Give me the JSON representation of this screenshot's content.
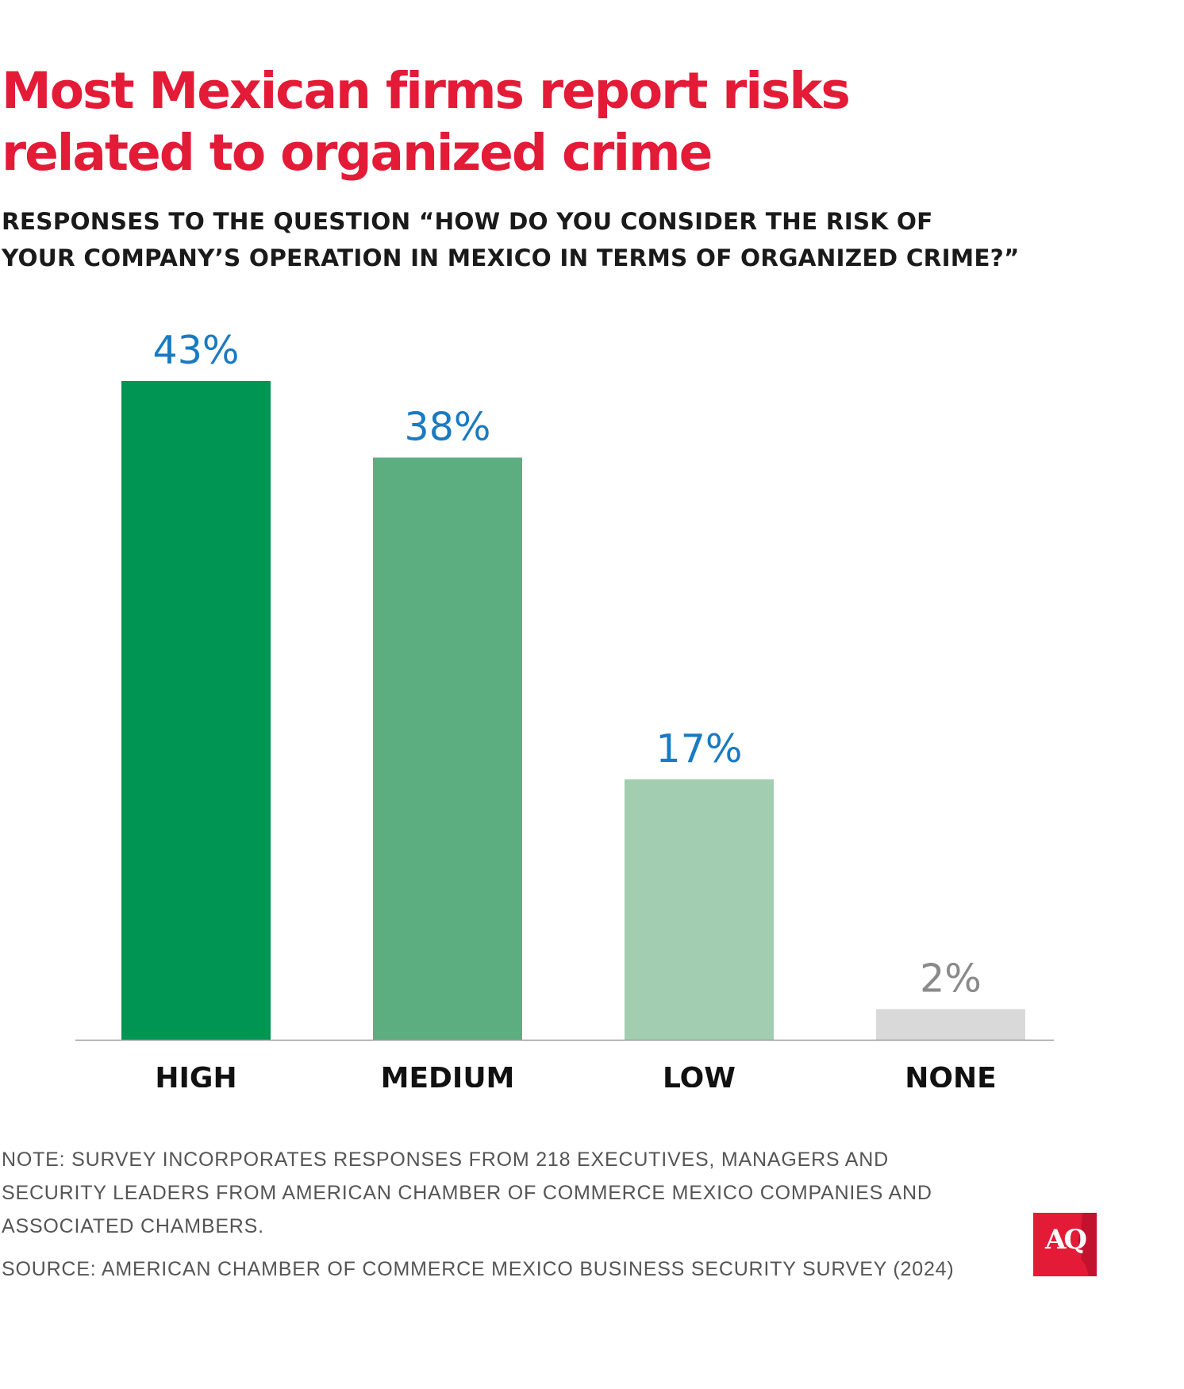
{
  "title_lines": [
    "Most Mexican firms report risks",
    "related to organized crime"
  ],
  "subtitle_lines": [
    "RESPONSES TO THE QUESTION “HOW DO YOU CONSIDER THE RISK OF",
    "YOUR COMPANY’S OPERATION IN MEXICO IN TERMS OF ORGANIZED CRIME?”"
  ],
  "chart_data": {
    "type": "bar",
    "title": "Most Mexican firms report risks related to organized crime",
    "categories": [
      "HIGH",
      "MEDIUM",
      "LOW",
      "NONE"
    ],
    "values": [
      43,
      38,
      17,
      2
    ],
    "value_labels": [
      "43%",
      "38%",
      "17%",
      "2%"
    ],
    "unit": "%",
    "ylim": [
      0,
      43
    ],
    "grid": false,
    "bar_colors": [
      "#009552",
      "#5cae80",
      "#a2cdb1",
      "#d9d9d9"
    ],
    "label_colors": [
      "#1a7ac1",
      "#1a7ac1",
      "#1a7ac1",
      "#8a8a8a"
    ],
    "axis_color": "#9a9a9a"
  },
  "note_lines": [
    "NOTE: SURVEY INCORPORATES RESPONSES FROM 218 EXECUTIVES, MANAGERS AND",
    "SECURITY LEADERS FROM AMERICAN CHAMBER OF COMMERCE MEXICO COMPANIES AND",
    "ASSOCIATED CHAMBERS."
  ],
  "source": "SOURCE: AMERICAN CHAMBER OF COMMERCE MEXICO BUSINESS SECURITY SURVEY (2024)",
  "logo": {
    "text": "AQ",
    "bg_color": "#e31b37"
  }
}
